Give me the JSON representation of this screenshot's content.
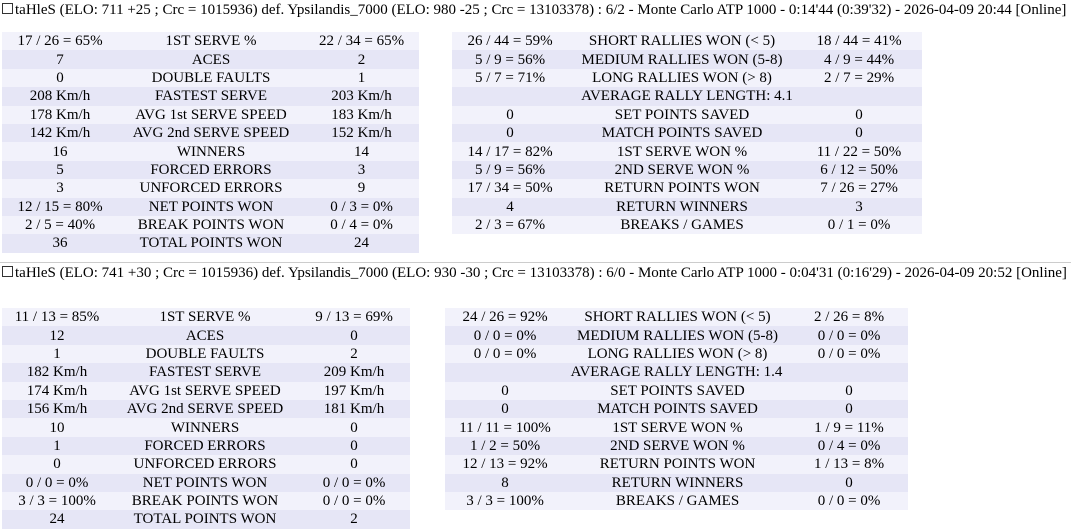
{
  "matches": [
    {
      "header": "taHleS (ELO: 711 +25 ; Crc = 1015936) def. Ypsilandis_7000 (ELO: 980 -25 ; Crc = 13103378) : 6/2 - Monte Carlo ATP 1000 - 0:14'44 (0:39'32) - 2026-04-09 20:44 [Online]",
      "left": [
        [
          "17 / 26 = 65%",
          "1ST SERVE %",
          "22 / 34 = 65%"
        ],
        [
          "7",
          "ACES",
          "2"
        ],
        [
          "0",
          "DOUBLE FAULTS",
          "1"
        ],
        [
          "208 Km/h",
          "FASTEST SERVE",
          "203 Km/h"
        ],
        [
          "178 Km/h",
          "AVG 1st SERVE SPEED",
          "183 Km/h"
        ],
        [
          "142 Km/h",
          "AVG 2nd SERVE SPEED",
          "152 Km/h"
        ],
        [
          "16",
          "WINNERS",
          "14"
        ],
        [
          "5",
          "FORCED ERRORS",
          "3"
        ],
        [
          "3",
          "UNFORCED ERRORS",
          "9"
        ],
        [
          "12 / 15 = 80%",
          "NET POINTS WON",
          "0 / 3 = 0%"
        ],
        [
          "2 / 5 = 40%",
          "BREAK POINTS WON",
          "0 / 4 = 0%"
        ],
        [
          "36",
          "TOTAL POINTS WON",
          "24"
        ]
      ],
      "right": [
        [
          "26 / 44 = 59%",
          "SHORT RALLIES WON (< 5)",
          "18 / 44 = 41%"
        ],
        [
          "5 / 9 = 56%",
          "MEDIUM RALLIES WON (5-8)",
          "4 / 9 = 44%"
        ],
        [
          "5 / 7 = 71%",
          "LONG RALLIES WON (> 8)",
          "2 / 7 = 29%"
        ],
        [
          "AVERAGE RALLY LENGTH: 4.1"
        ],
        [
          "0",
          "SET POINTS SAVED",
          "0"
        ],
        [
          "0",
          "MATCH POINTS SAVED",
          "0"
        ],
        [
          "14 / 17 = 82%",
          "1ST SERVE WON %",
          "11 / 22 = 50%"
        ],
        [
          "5 / 9 = 56%",
          "2ND SERVE WON %",
          "6 / 12 = 50%"
        ],
        [
          "17 / 34 = 50%",
          "RETURN POINTS WON",
          "7 / 26 = 27%"
        ],
        [
          "4",
          "RETURN WINNERS",
          "3"
        ],
        [
          "2 / 3 = 67%",
          "BREAKS / GAMES",
          "0 / 1 = 0%"
        ]
      ]
    },
    {
      "header": "taHleS (ELO: 741 +30 ; Crc = 1015936) def. Ypsilandis_7000 (ELO: 930 -30 ; Crc = 13103378) : 6/0 - Monte Carlo ATP 1000 - 0:04'31 (0:16'29) - 2026-04-09 20:52 [Online]",
      "left": [
        [
          "11 / 13 = 85%",
          "1ST SERVE %",
          "9 / 13 = 69%"
        ],
        [
          "12",
          "ACES",
          "0"
        ],
        [
          "1",
          "DOUBLE FAULTS",
          "2"
        ],
        [
          "182 Km/h",
          "FASTEST SERVE",
          "209 Km/h"
        ],
        [
          "174 Km/h",
          "AVG 1st SERVE SPEED",
          "197 Km/h"
        ],
        [
          "156 Km/h",
          "AVG 2nd SERVE SPEED",
          "181 Km/h"
        ],
        [
          "10",
          "WINNERS",
          "0"
        ],
        [
          "1",
          "FORCED ERRORS",
          "0"
        ],
        [
          "0",
          "UNFORCED ERRORS",
          "0"
        ],
        [
          "0 / 0 = 0%",
          "NET POINTS WON",
          "0 / 0 = 0%"
        ],
        [
          "3 / 3 = 100%",
          "BREAK POINTS WON",
          "0 / 0 = 0%"
        ],
        [
          "24",
          "TOTAL POINTS WON",
          "2"
        ]
      ],
      "right": [
        [
          "24 / 26 = 92%",
          "SHORT RALLIES WON (< 5)",
          "2 / 26 = 8%"
        ],
        [
          "0 / 0 = 0%",
          "MEDIUM RALLIES WON (5-8)",
          "0 / 0 = 0%"
        ],
        [
          "0 / 0 = 0%",
          "LONG RALLIES WON (> 8)",
          "0 / 0 = 0%"
        ],
        [
          "AVERAGE RALLY LENGTH: 1.4"
        ],
        [
          "0",
          "SET POINTS SAVED",
          "0"
        ],
        [
          "0",
          "MATCH POINTS SAVED",
          "0"
        ],
        [
          "11 / 11 = 100%",
          "1ST SERVE WON %",
          "1 / 9 = 11%"
        ],
        [
          "1 / 2 = 50%",
          "2ND SERVE WON %",
          "0 / 4 = 0%"
        ],
        [
          "12 / 13 = 92%",
          "RETURN POINTS WON",
          "1 / 13 = 8%"
        ],
        [
          "8",
          "RETURN WINNERS",
          "0"
        ],
        [
          "3 / 3 = 100%",
          "BREAKS / GAMES",
          "0 / 0 = 0%"
        ]
      ]
    }
  ]
}
